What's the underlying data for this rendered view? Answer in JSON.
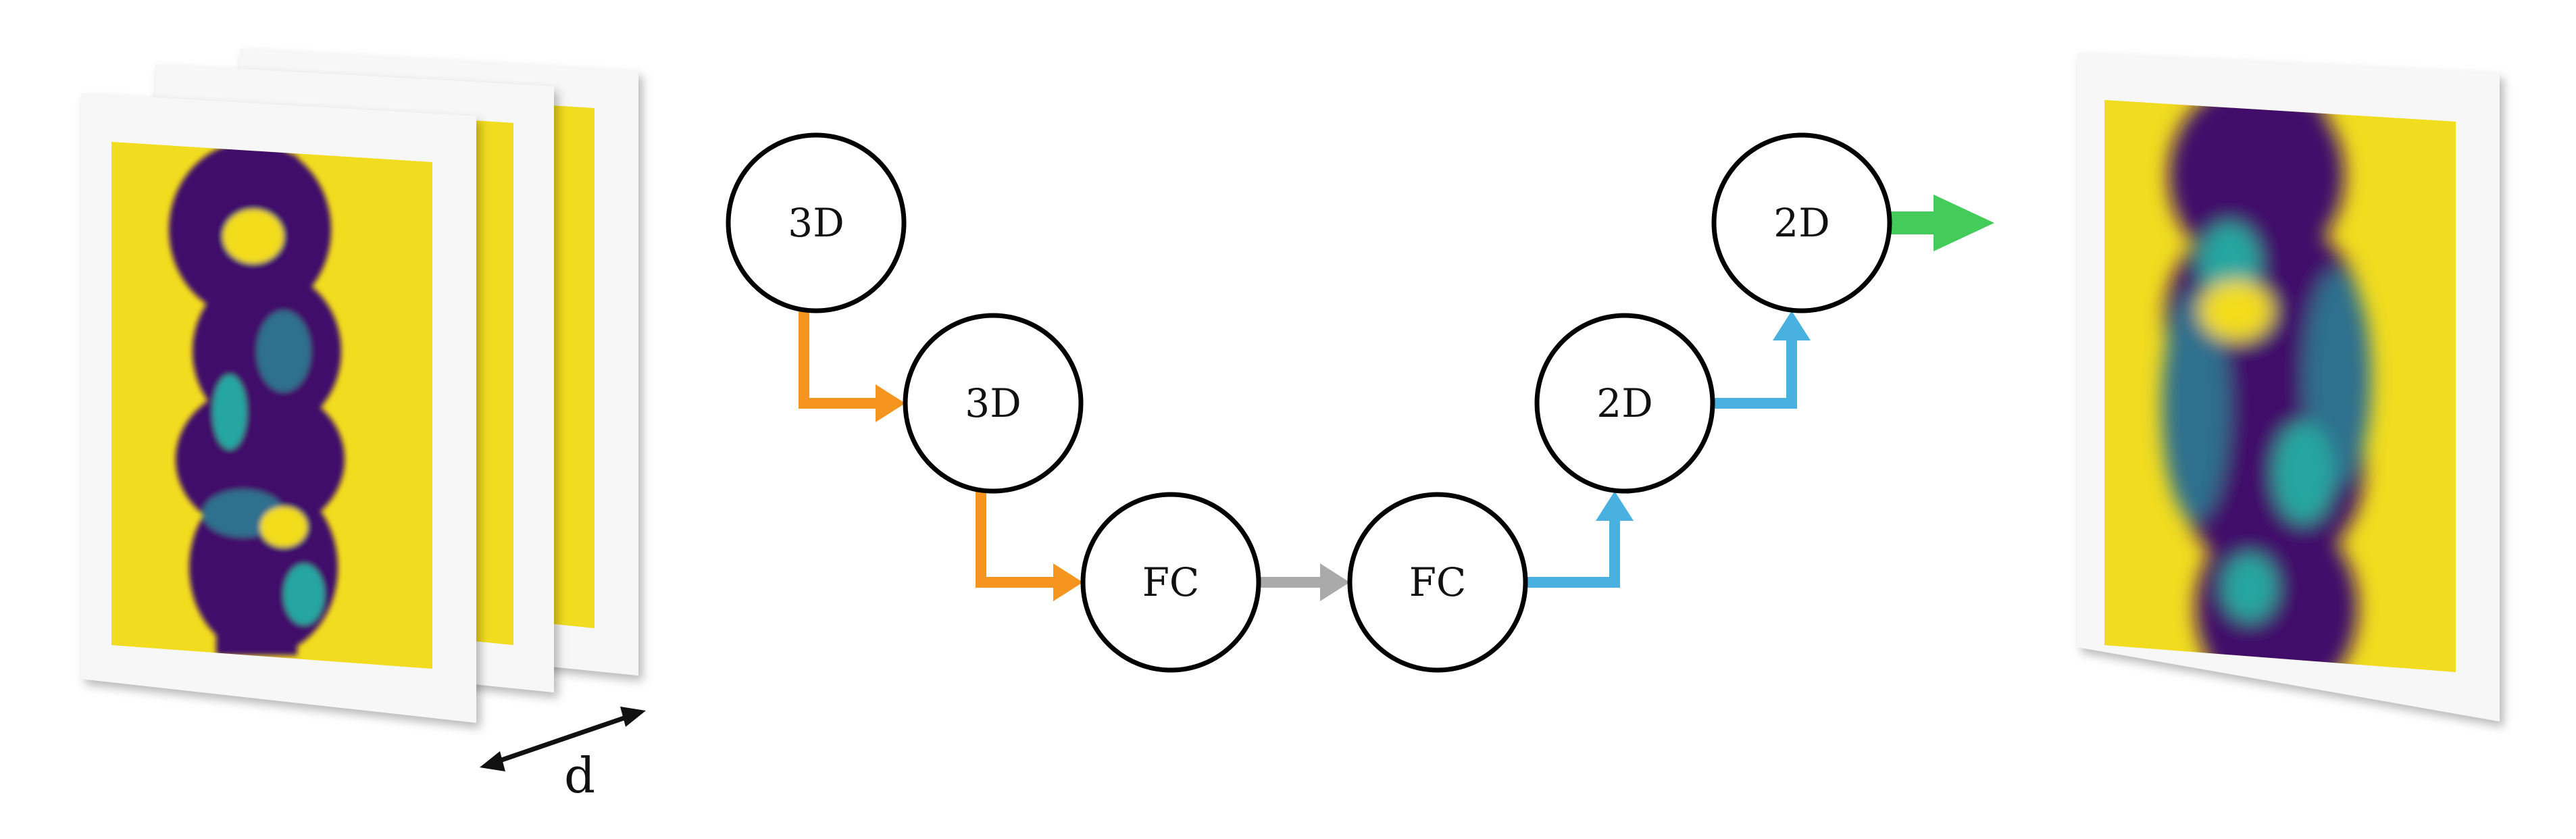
{
  "colors": {
    "background": "#ffffff",
    "frame": "#f7f7f7",
    "field_yellow": "#f2dc1f",
    "plume_dark": "#41106b",
    "plume_mid": "#2f6f8e",
    "plume_teal": "#27a6a0",
    "encoder_arrow": "#f5951f",
    "bottleneck_arrow": "#aaaaaa",
    "decoder_arrow": "#49b1df",
    "output_arrow": "#44cc5a",
    "node_stroke": "#000000"
  },
  "input_stack": {
    "name": "input-slice-stack",
    "slices": 3,
    "depth_label": "d"
  },
  "nodes": [
    {
      "id": "enc-3d-1",
      "label": "3D",
      "stage": "encoder"
    },
    {
      "id": "enc-3d-2",
      "label": "3D",
      "stage": "encoder"
    },
    {
      "id": "fc-1",
      "label": "FC",
      "stage": "bottleneck"
    },
    {
      "id": "fc-2",
      "label": "FC",
      "stage": "bottleneck"
    },
    {
      "id": "dec-2d-1",
      "label": "2D",
      "stage": "decoder"
    },
    {
      "id": "dec-2d-2",
      "label": "2D",
      "stage": "decoder"
    }
  ],
  "edges": [
    {
      "from": "enc-3d-1",
      "to": "enc-3d-2",
      "color": "encoder_arrow"
    },
    {
      "from": "enc-3d-2",
      "to": "fc-1",
      "color": "encoder_arrow"
    },
    {
      "from": "fc-1",
      "to": "fc-2",
      "color": "bottleneck_arrow"
    },
    {
      "from": "fc-2",
      "to": "dec-2d-1",
      "color": "decoder_arrow"
    },
    {
      "from": "dec-2d-1",
      "to": "dec-2d-2",
      "color": "decoder_arrow"
    },
    {
      "from": "dec-2d-2",
      "to": "output-field",
      "color": "output_arrow"
    }
  ],
  "output": {
    "name": "output-field"
  }
}
